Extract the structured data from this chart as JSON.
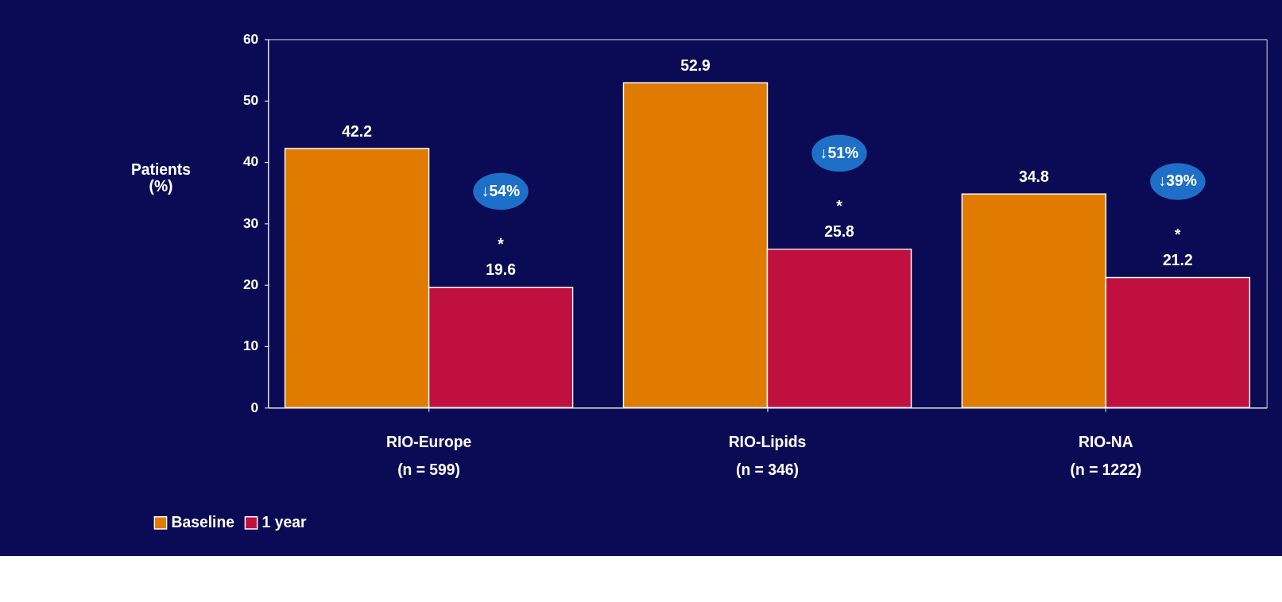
{
  "chart_data": {
    "type": "bar",
    "ylabel": "Patients\n(%)",
    "categories": [
      "RIO-Europe\n(n = 599)",
      "RIO-Lipids\n(n = 346)",
      "RIO-NA\n(n = 1222)"
    ],
    "series": [
      {
        "name": "Baseline",
        "color": "#e07b00",
        "values": [
          42.2,
          52.9,
          34.8
        ]
      },
      {
        "name": "1 year",
        "color": "#c0103f",
        "values": [
          19.6,
          25.8,
          21.2
        ]
      }
    ],
    "ylim": [
      0,
      60
    ],
    "yticks": [
      0,
      10,
      20,
      30,
      40,
      50,
      60
    ],
    "grid": false,
    "legend": "bottom left",
    "data_labels": true,
    "annotations": [
      "↓54%",
      "↓51%",
      "↓39%",
      "*",
      "*",
      "*"
    ]
  }
}
